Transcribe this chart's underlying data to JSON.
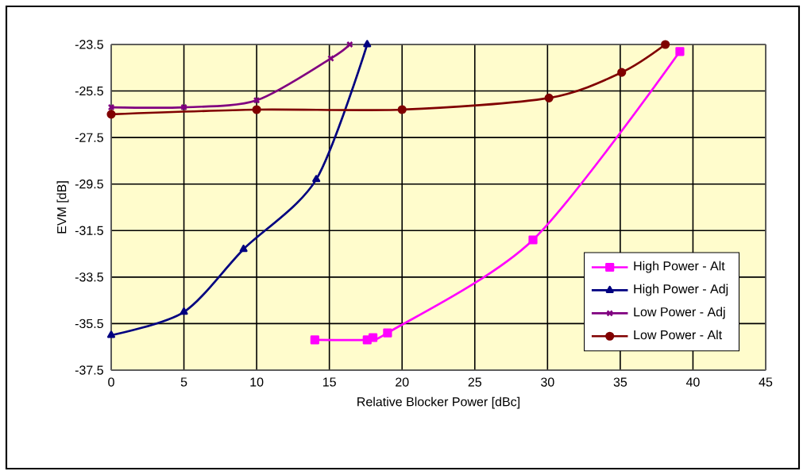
{
  "chart_data": {
    "type": "line",
    "xlabel": "Relative Blocker Power [dBc]",
    "ylabel": "EVM [dB]",
    "xlim": [
      0,
      45
    ],
    "xticks": [
      0,
      5,
      10,
      15,
      20,
      25,
      30,
      35,
      40,
      45
    ],
    "ylim": [
      -37.5,
      -23.5
    ],
    "yticks": [
      -37.5,
      -35.5,
      -33.5,
      -31.5,
      -29.5,
      -27.5,
      -25.5,
      -23.5
    ],
    "grid": true,
    "legend": "right",
    "series": [
      {
        "name": "High Power - Alt",
        "color": "#ff00ff",
        "marker": "square",
        "x": [
          14,
          17.6,
          18,
          19,
          29,
          39.1
        ],
        "values": [
          -36.2,
          -36.2,
          -36.1,
          -35.9,
          -31.9,
          -23.8
        ]
      },
      {
        "name": "High Power - Adj",
        "color": "#000080",
        "marker": "triangle",
        "x": [
          0,
          5,
          9.1,
          14.1,
          17.6
        ],
        "values": [
          -36.0,
          -35.0,
          -32.3,
          -29.3,
          -23.5
        ]
      },
      {
        "name": "Low Power - Adj",
        "color": "#800080",
        "marker": "cross",
        "x": [
          0,
          5,
          10,
          15.1,
          16.4
        ],
        "values": [
          -26.2,
          -26.2,
          -25.9,
          -24.1,
          -23.5
        ]
      },
      {
        "name": "Low Power - Alt",
        "color": "#800000",
        "marker": "circle",
        "x": [
          0,
          10,
          20,
          30.1,
          35.1,
          38.1
        ],
        "values": [
          -26.5,
          -26.3,
          -26.3,
          -25.8,
          -24.7,
          -23.5
        ]
      }
    ]
  }
}
